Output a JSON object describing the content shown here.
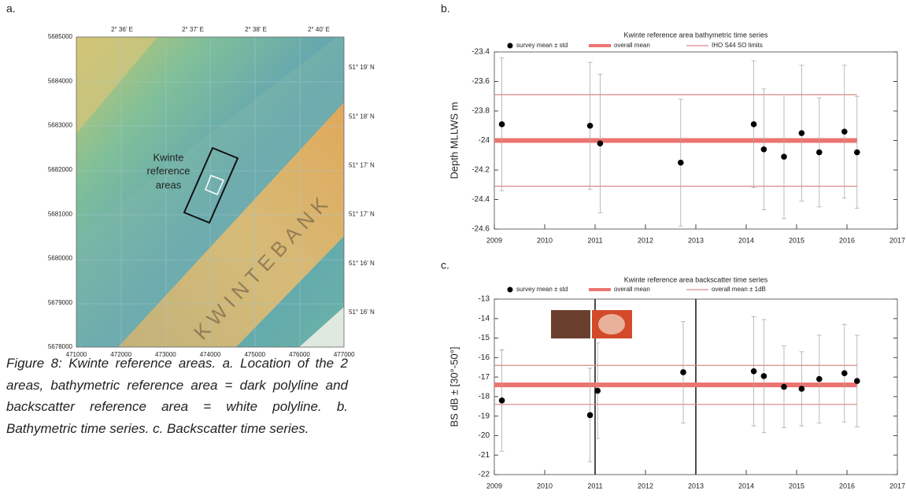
{
  "panel_labels": [
    "a.",
    "b.",
    "c."
  ],
  "map": {
    "top_ticks": [
      "2° 36' E",
      "2° 37' E",
      "2° 38' E",
      "2° 40' E"
    ],
    "left_ticks": [
      "5685000",
      "5684000",
      "5683000",
      "5682000",
      "5681000",
      "5680000",
      "5679000",
      "5678000"
    ],
    "right_ticks": [
      "51° 19' N",
      "51° 18' N",
      "51° 17' N",
      "51° 17' N",
      "51° 16' N",
      "51° 16' N"
    ],
    "bottom_ticks": [
      "471000",
      "472000",
      "473000",
      "474000",
      "475000",
      "476000",
      "477000"
    ],
    "area_label": [
      "Kwinte",
      "reference",
      "areas"
    ],
    "bank_label": "KWINTEBANK"
  },
  "caption": "Figure 8: Kwinte reference areas. a. Location of the 2 areas, bathymetric reference area = dark polyline and backscatter reference area = white polyline. b. Bathymetric time series. c. Backscatter time series.",
  "chart_data": [
    {
      "type": "scatter",
      "title": "Kwinte reference area bathymetric time series",
      "ylabel": "Depth MLLWS m",
      "xlim": [
        2009,
        2017
      ],
      "xticks": [
        2009,
        2010,
        2011,
        2012,
        2013,
        2014,
        2015,
        2016,
        2017
      ],
      "ylim": [
        -24.6,
        -23.4
      ],
      "yticks": [
        -24.6,
        -24.4,
        -24.2,
        -24,
        -23.8,
        -23.6,
        -23.4
      ],
      "series": [
        {
          "name": "survey mean ± std",
          "color": "#000000",
          "x": [
            2009.15,
            2010.9,
            2011.1,
            2012.7,
            2014.15,
            2014.35,
            2014.75,
            2015.1,
            2015.45,
            2015.95,
            2016.2
          ],
          "values": [
            -23.89,
            -23.9,
            -24.02,
            -24.15,
            -23.89,
            -24.06,
            -24.11,
            -23.95,
            -24.08,
            -23.94,
            -24.08
          ],
          "errors": [
            0.45,
            0.43,
            0.47,
            0.43,
            0.43,
            0.41,
            0.42,
            0.46,
            0.37,
            0.45,
            0.38
          ]
        }
      ],
      "hlines": [
        {
          "name": "overall mean",
          "color": "#ec7470",
          "values": [
            -24
          ],
          "x": [
            2009,
            2016.2
          ]
        },
        {
          "name": "IHO S44 SO limits",
          "color": "#d98886",
          "values": [
            -23.69,
            -24.31
          ],
          "x": [
            2009,
            2016.2
          ]
        }
      ],
      "vlines": []
    },
    {
      "type": "scatter",
      "title": "Kwinte reference area backscatter time series",
      "ylabel": "BS dB ± [30°-50°]",
      "xlim": [
        2009,
        2017
      ],
      "xticks": [
        2009,
        2010,
        2011,
        2012,
        2013,
        2014,
        2015,
        2016,
        2017
      ],
      "ylim": [
        -22,
        -13
      ],
      "yticks": [
        -22,
        -21,
        -20,
        -19,
        -18,
        -17,
        -16,
        -15,
        -14,
        -13
      ],
      "series": [
        {
          "name": "survey mean ± std",
          "color": "#000000",
          "x": [
            2009.15,
            2010.9,
            2011.05,
            2012.75,
            2014.15,
            2014.35,
            2014.75,
            2015.1,
            2015.45,
            2015.95,
            2016.2
          ],
          "values": [
            -18.2,
            -18.95,
            -17.7,
            -16.75,
            -16.7,
            -16.95,
            -17.5,
            -17.6,
            -17.1,
            -16.8,
            -17.2
          ],
          "errors": [
            2.6,
            2.4,
            2.45,
            2.6,
            2.8,
            2.9,
            2.1,
            1.9,
            2.25,
            2.5,
            2.35
          ]
        }
      ],
      "hlines": [
        {
          "name": "overall mean",
          "color": "#ec7470",
          "values": [
            -17.4
          ],
          "x": [
            2009,
            2016.2
          ]
        },
        {
          "name": "overall mean ± 1dB",
          "color": "#d98886",
          "values": [
            -16.4,
            -18.4
          ],
          "x": [
            2009,
            2016.2
          ]
        }
      ],
      "vlines": [
        2011,
        2013
      ]
    }
  ]
}
